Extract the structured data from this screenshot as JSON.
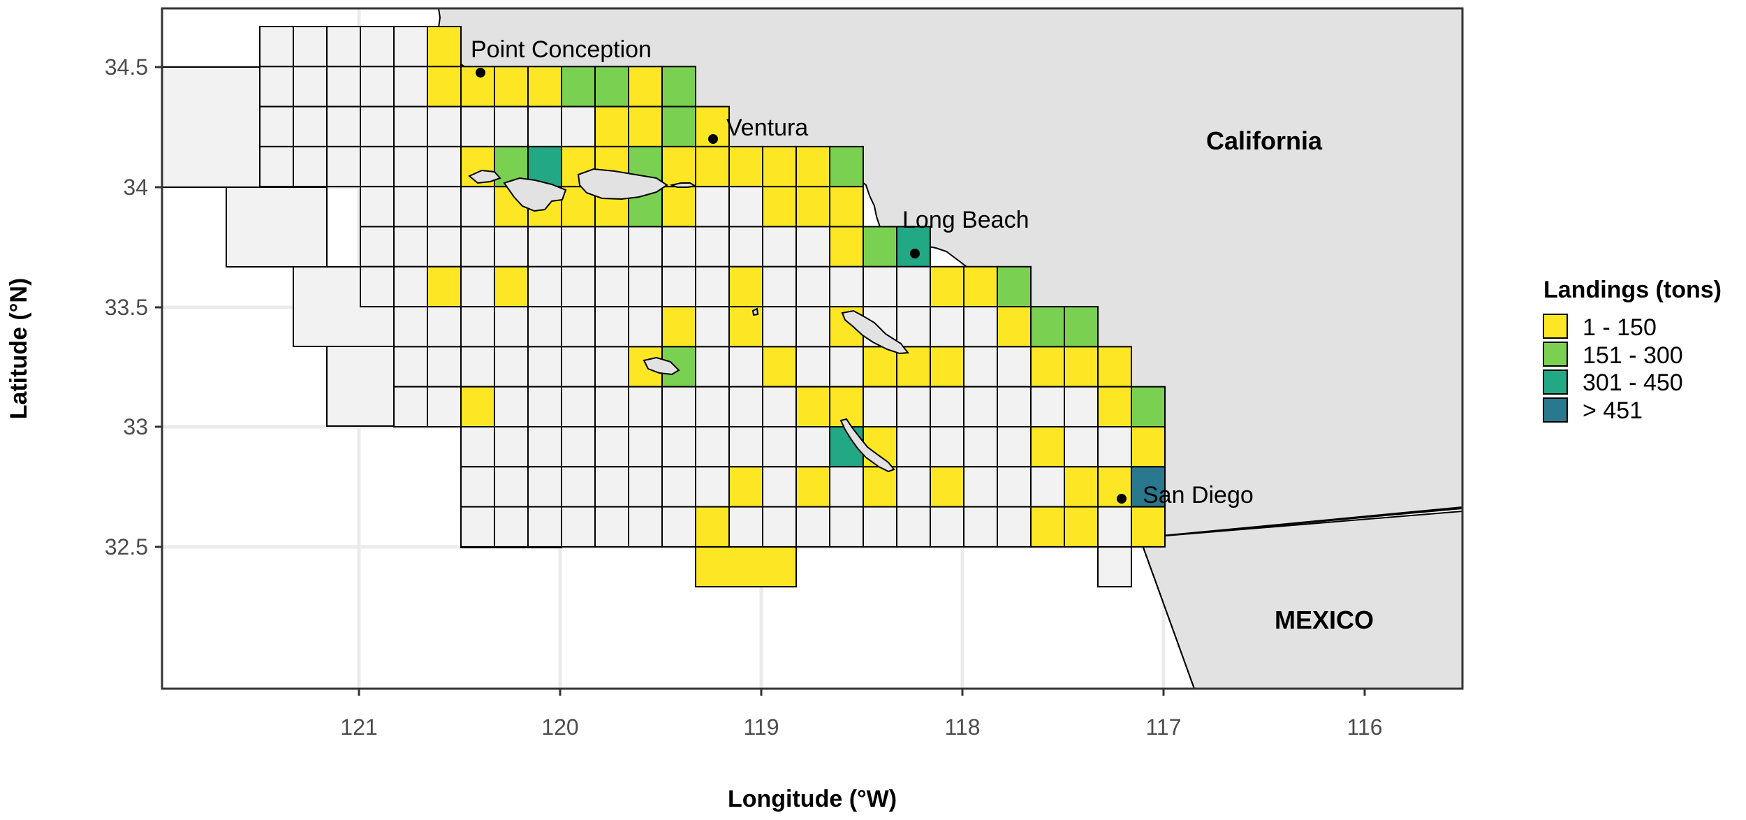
{
  "chart_data": {
    "type": "map",
    "title": "",
    "xlabel": "Longitude (°W)",
    "ylabel": "Latitude (°N)",
    "xlim": [
      121.98,
      115.52
    ],
    "ylim": [
      32.04,
      34.75
    ],
    "x_ticks": [
      "121",
      "120",
      "119",
      "118",
      "117",
      "116"
    ],
    "y_ticks": [
      "34.5",
      "34",
      "33.5",
      "33",
      "32.5"
    ],
    "grid": true,
    "regions": [
      {
        "name": "California",
        "color": "#e2e2e2"
      },
      {
        "name": "MEXICO",
        "color": "#e2e2e2"
      }
    ],
    "cities": [
      {
        "name": "Point Conception",
        "lon": 120.4,
        "lat": 34.47
      },
      {
        "name": "Ventura",
        "lon": 119.23,
        "lat": 34.2
      },
      {
        "name": "Long Beach",
        "lon": 118.25,
        "lat": 33.72
      },
      {
        "name": "San Diego",
        "lon": 117.2,
        "lat": 32.71
      }
    ],
    "legend": {
      "title": "Landings (tons)",
      "placement": "right",
      "classes": [
        {
          "label": "1 - 150",
          "color": "#fde725"
        },
        {
          "label": "151 - 300",
          "color": "#7ad151"
        },
        {
          "label": "301 - 450",
          "color": "#22a884"
        },
        {
          "label": "> 451",
          "color": "#2a788e"
        }
      ],
      "no_data_color": "#f2f2f2"
    },
    "grid_origin": {
      "lon": 121.5,
      "lat": 34.67,
      "cell_lon": 0.1667,
      "cell_lat": 0.1667
    },
    "cells": [
      {
        "row": 0,
        "col": 5,
        "class": 1
      },
      {
        "row": 1,
        "col": 5,
        "class": 1
      },
      {
        "row": 1,
        "col": 6,
        "class": 1
      },
      {
        "row": 1,
        "col": 7,
        "class": 1
      },
      {
        "row": 1,
        "col": 8,
        "class": 1
      },
      {
        "row": 1,
        "col": 9,
        "class": 2
      },
      {
        "row": 1,
        "col": 10,
        "class": 2
      },
      {
        "row": 1,
        "col": 11,
        "class": 1
      },
      {
        "row": 1,
        "col": 12,
        "class": 2
      },
      {
        "row": 2,
        "col": 10,
        "class": 1
      },
      {
        "row": 2,
        "col": 11,
        "class": 1
      },
      {
        "row": 2,
        "col": 12,
        "class": 2
      },
      {
        "row": 2,
        "col": 13,
        "class": 1
      },
      {
        "row": 3,
        "col": 6,
        "class": 1
      },
      {
        "row": 3,
        "col": 7,
        "class": 2
      },
      {
        "row": 3,
        "col": 8,
        "class": 3
      },
      {
        "row": 3,
        "col": 9,
        "class": 1
      },
      {
        "row": 3,
        "col": 10,
        "class": 1
      },
      {
        "row": 3,
        "col": 11,
        "class": 2
      },
      {
        "row": 3,
        "col": 12,
        "class": 1
      },
      {
        "row": 3,
        "col": 13,
        "class": 1
      },
      {
        "row": 3,
        "col": 14,
        "class": 1
      },
      {
        "row": 3,
        "col": 15,
        "class": 1
      },
      {
        "row": 3,
        "col": 16,
        "class": 1
      },
      {
        "row": 3,
        "col": 17,
        "class": 2
      },
      {
        "row": 4,
        "col": 7,
        "class": 1
      },
      {
        "row": 4,
        "col": 8,
        "class": 1
      },
      {
        "row": 4,
        "col": 9,
        "class": 1
      },
      {
        "row": 4,
        "col": 10,
        "class": 1
      },
      {
        "row": 4,
        "col": 11,
        "class": 2
      },
      {
        "row": 4,
        "col": 12,
        "class": 1
      },
      {
        "row": 4,
        "col": 15,
        "class": 1
      },
      {
        "row": 4,
        "col": 16,
        "class": 1
      },
      {
        "row": 4,
        "col": 17,
        "class": 1
      },
      {
        "row": 5,
        "col": 17,
        "class": 1
      },
      {
        "row": 5,
        "col": 18,
        "class": 2
      },
      {
        "row": 5,
        "col": 19,
        "class": 3
      },
      {
        "row": 6,
        "col": 5,
        "class": 1
      },
      {
        "row": 6,
        "col": 7,
        "class": 1
      },
      {
        "row": 6,
        "col": 14,
        "class": 1
      },
      {
        "row": 6,
        "col": 20,
        "class": 1
      },
      {
        "row": 6,
        "col": 21,
        "class": 1
      },
      {
        "row": 6,
        "col": 22,
        "class": 2
      },
      {
        "row": 7,
        "col": 12,
        "class": 1
      },
      {
        "row": 7,
        "col": 14,
        "class": 1
      },
      {
        "row": 7,
        "col": 17,
        "class": 1
      },
      {
        "row": 7,
        "col": 22,
        "class": 1
      },
      {
        "row": 7,
        "col": 23,
        "class": 2
      },
      {
        "row": 7,
        "col": 24,
        "class": 2
      },
      {
        "row": 8,
        "col": 11,
        "class": 1
      },
      {
        "row": 8,
        "col": 12,
        "class": 2
      },
      {
        "row": 8,
        "col": 15,
        "class": 1
      },
      {
        "row": 8,
        "col": 18,
        "class": 1
      },
      {
        "row": 8,
        "col": 19,
        "class": 1
      },
      {
        "row": 8,
        "col": 20,
        "class": 1
      },
      {
        "row": 8,
        "col": 23,
        "class": 1
      },
      {
        "row": 8,
        "col": 24,
        "class": 1
      },
      {
        "row": 8,
        "col": 25,
        "class": 1
      },
      {
        "row": 9,
        "col": 6,
        "class": 1
      },
      {
        "row": 9,
        "col": 16,
        "class": 1
      },
      {
        "row": 9,
        "col": 17,
        "class": 1
      },
      {
        "row": 9,
        "col": 25,
        "class": 1
      },
      {
        "row": 9,
        "col": 26,
        "class": 2
      },
      {
        "row": 10,
        "col": 17,
        "class": 3
      },
      {
        "row": 10,
        "col": 18,
        "class": 1
      },
      {
        "row": 10,
        "col": 23,
        "class": 1
      },
      {
        "row": 10,
        "col": 26,
        "class": 1
      },
      {
        "row": 11,
        "col": 14,
        "class": 1
      },
      {
        "row": 11,
        "col": 16,
        "class": 1
      },
      {
        "row": 11,
        "col": 18,
        "class": 1
      },
      {
        "row": 11,
        "col": 20,
        "class": 1
      },
      {
        "row": 11,
        "col": 24,
        "class": 1
      },
      {
        "row": 11,
        "col": 25,
        "class": 1
      },
      {
        "row": 11,
        "col": 26,
        "class": 4
      },
      {
        "row": 12,
        "col": 13,
        "class": 1
      },
      {
        "row": 12,
        "col": 23,
        "class": 1
      },
      {
        "row": 12,
        "col": 24,
        "class": 1
      },
      {
        "row": 12,
        "col": 26,
        "class": 1
      }
    ]
  }
}
